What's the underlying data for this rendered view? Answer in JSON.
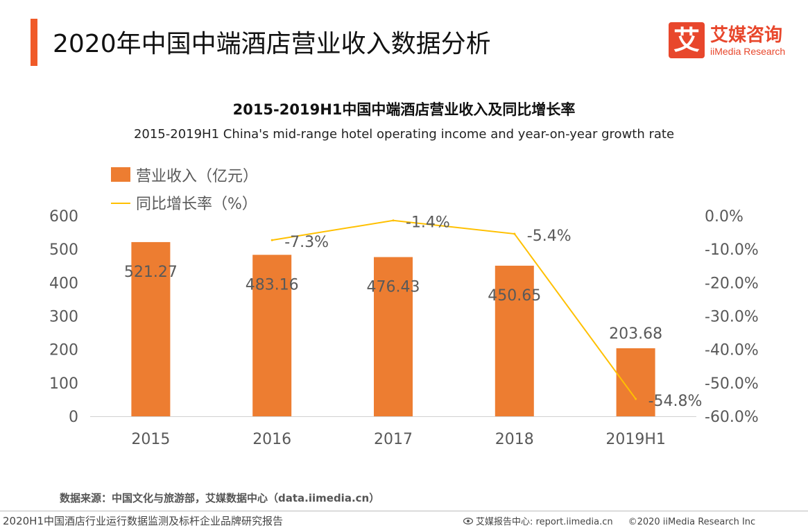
{
  "header": {
    "title": "2020年中国中端酒店营业收入数据分析",
    "accent_color": "#f05a28"
  },
  "logo": {
    "mark": "艾",
    "cn": "艾媒咨询",
    "en": "iiMedia Research",
    "color": "#e8472c"
  },
  "chart_data": {
    "type": "bar",
    "title": "2015-2019H1中国中端酒店营业收入及同比增长率",
    "subtitle": "2015-2019H1 China's mid-range hotel operating income and year-on-year growth rate",
    "categories": [
      "2015",
      "2016",
      "2017",
      "2018",
      "2019H1"
    ],
    "series": [
      {
        "name": "营业收入（亿元）",
        "type": "bar",
        "axis": "left",
        "color": "#ed7d31",
        "values": [
          521.27,
          483.16,
          476.43,
          450.65,
          203.68
        ],
        "labels": [
          "521.27",
          "483.16",
          "476.43",
          "450.65",
          "203.68"
        ]
      },
      {
        "name": "同比增长率（%）",
        "type": "line",
        "axis": "right",
        "color": "#ffc000",
        "values": [
          null,
          -7.3,
          -1.4,
          -5.4,
          -54.8
        ],
        "labels": [
          "",
          "-7.3%",
          "-1.4%",
          "-5.4%",
          "-54.8%"
        ]
      }
    ],
    "y_left": {
      "lim": [
        0,
        600
      ],
      "ticks": [
        "0",
        "100",
        "200",
        "300",
        "400",
        "500",
        "600"
      ]
    },
    "y_right": {
      "lim": [
        -60,
        0
      ],
      "ticks": [
        "0.0%",
        "-10.0%",
        "-20.0%",
        "-30.0%",
        "-40.0%",
        "-50.0%",
        "-60.0%"
      ]
    },
    "legend_position": "top-left",
    "grid": false
  },
  "source": "数据来源：中国文化与旅游部，艾媒数据中心（data.iimedia.cn）",
  "footer": {
    "left": "2020H1中国酒店行业运行数据监测及标杆企业品牌研究报告",
    "right_label": "艾媒报告中心: report.iimedia.cn",
    "copyright": "©2020  iiMedia Research  Inc",
    "eye_icon": "eye-icon"
  }
}
